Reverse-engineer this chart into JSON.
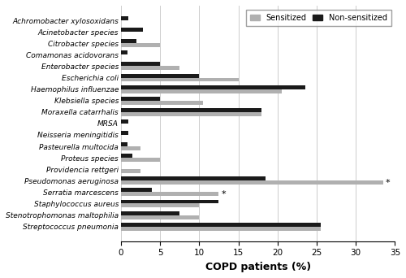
{
  "categories": [
    "Achromobacter xylosoxidans",
    "Acinetobacter species",
    "Citrobacter species",
    "Comamonas acidovorans",
    "Enterobacter species",
    "Escherichia coli",
    "Haemophilus influenzae",
    "Klebsiella species",
    "Moraxella catarrhalis",
    "MRSA",
    "Neisseria meningitidis",
    "Pasteurella multocida",
    "Proteus species",
    "Providencia rettgeri",
    "Pseudomonas aeruginosa",
    "Serratia marcescens",
    "Staphylococcus aureus",
    "Stenotrophomonas maltophilia",
    "Streptococcus pneumonia"
  ],
  "sensitized": [
    0.0,
    0.0,
    5.0,
    0.0,
    7.5,
    15.0,
    20.5,
    10.5,
    18.0,
    0.0,
    0.0,
    2.5,
    5.0,
    2.5,
    33.5,
    12.5,
    10.0,
    10.0,
    25.5
  ],
  "non_sensitized": [
    1.0,
    2.8,
    2.0,
    0.8,
    5.0,
    10.0,
    23.5,
    5.0,
    18.0,
    1.0,
    1.0,
    0.8,
    1.5,
    0.0,
    18.5,
    4.0,
    12.5,
    7.5,
    25.5
  ],
  "sensitized_color": "#b0b0b0",
  "non_sensitized_color": "#1a1a1a",
  "xlabel": "COPD patients (%)",
  "legend_sensitized": "Sensitized",
  "legend_non_sensitized": "Non-sensitized",
  "xlim": [
    0,
    35
  ],
  "xticks": [
    0,
    5,
    10,
    15,
    20,
    25,
    30,
    35
  ],
  "bar_height": 0.35,
  "annotations": {
    "Pseudomonas aeruginosa": "*",
    "Serratia marcescens": "*"
  },
  "figsize": [
    5.0,
    3.42
  ],
  "dpi": 100
}
